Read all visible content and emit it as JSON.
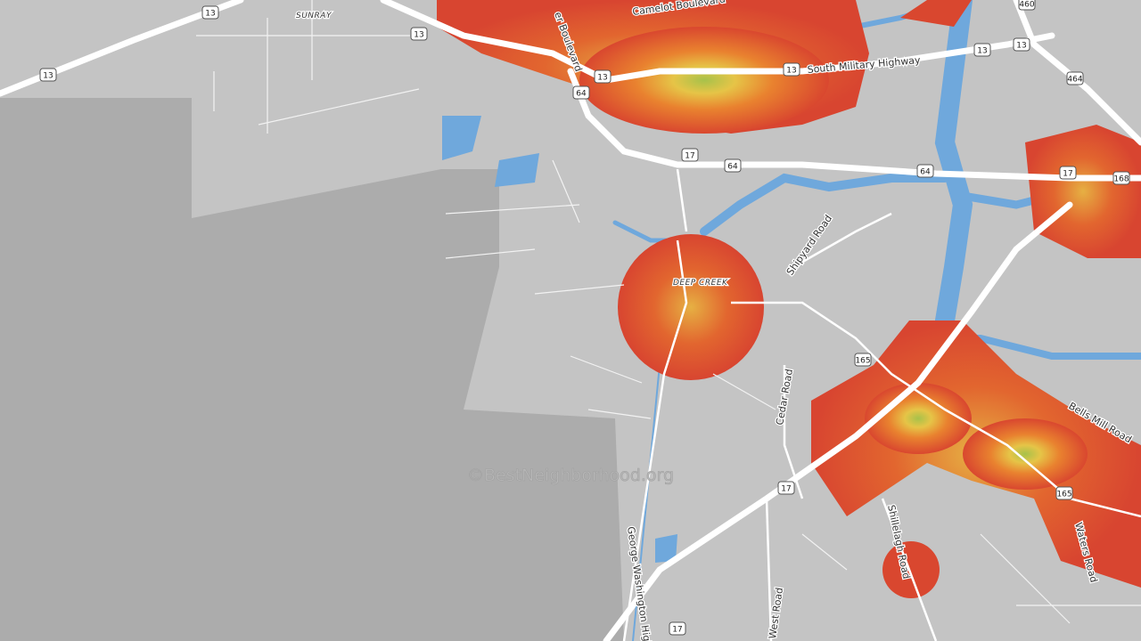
{
  "map": {
    "labels": [
      "SUNRAY",
      "Camelot Boulevard",
      "er Boulevard",
      "South Military Highway",
      "DEEP CREEK",
      "Shipyard Road",
      "Cedar Road",
      "Bells Mill Road",
      "Shillelagh Road",
      "Waters Road",
      "West Road",
      "George Washington Highw"
    ],
    "shields": [
      "13",
      "13",
      "13",
      "13",
      "13",
      "13",
      "13",
      "64",
      "64",
      "64",
      "17",
      "17",
      "17",
      "17",
      "165",
      "165",
      "168",
      "460",
      "464"
    ],
    "watermark": "©BestNeighborhood.org"
  }
}
